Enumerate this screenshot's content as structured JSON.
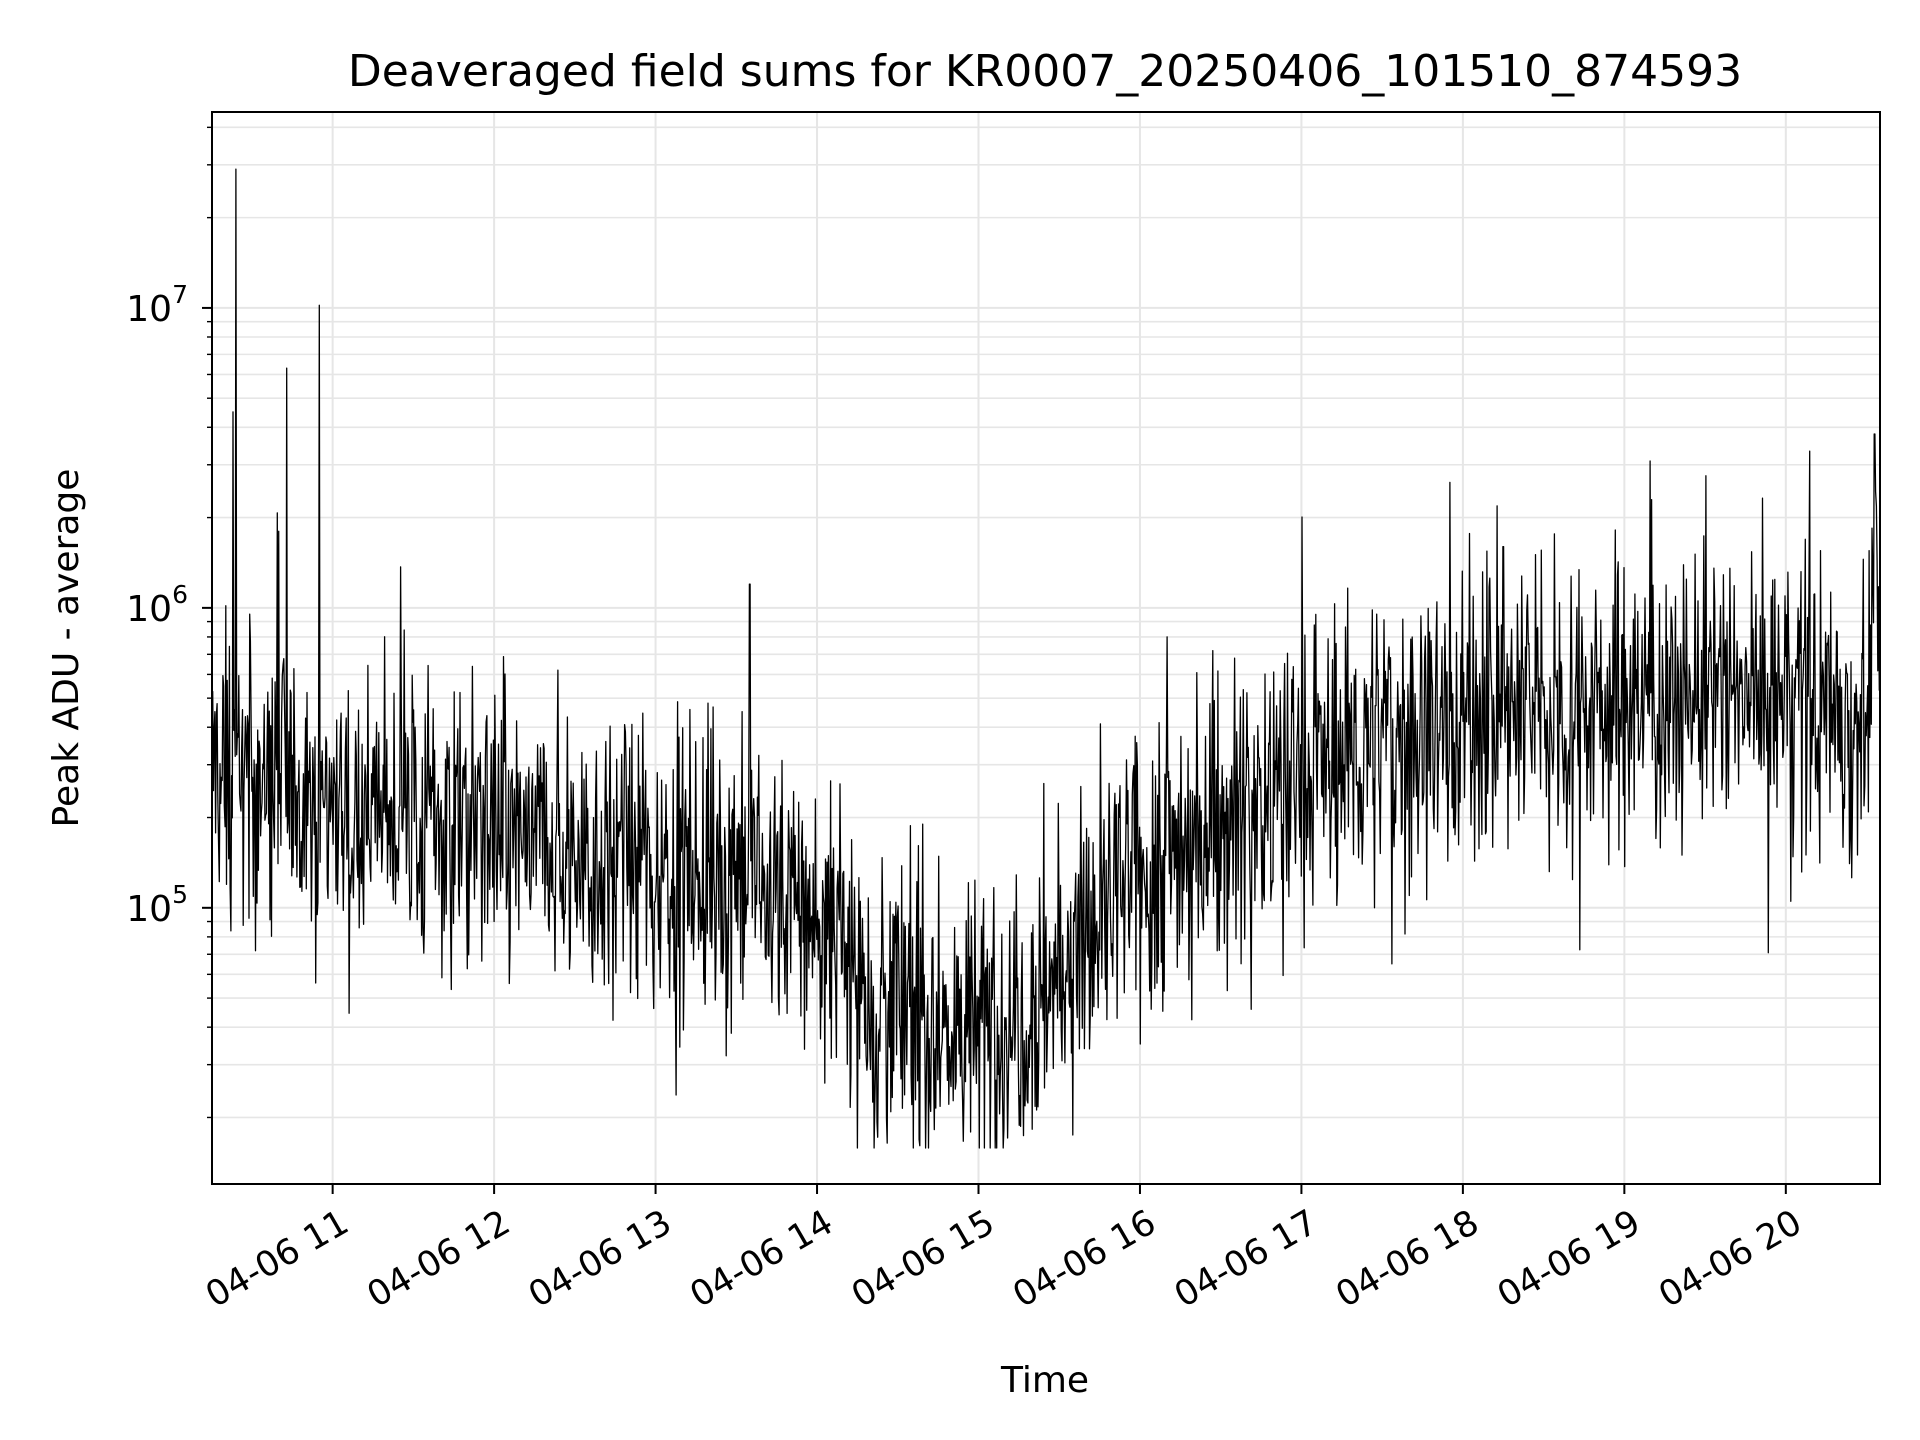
{
  "chart_data": {
    "type": "line",
    "title": "Deaveraged field sums for KR0007_20250406_101510_874593",
    "xlabel": "Time",
    "ylabel": "Peak ADU - average",
    "yscale": "log",
    "x_range": [
      "2025-04-06 10:15:10",
      "2025-04-06 20:35"
    ],
    "ylim": [
      12000,
      45000000
    ],
    "x_ticks": [
      "04-06 11",
      "04-06 12",
      "04-06 13",
      "04-06 14",
      "04-06 15",
      "04-06 16",
      "04-06 17",
      "04-06 18",
      "04-06 19",
      "04-06 20"
    ],
    "y_ticks": [
      {
        "base": "10",
        "exp": "5",
        "value": 100000
      },
      {
        "base": "10",
        "exp": "6",
        "value": 1000000
      },
      {
        "base": "10",
        "exp": "7",
        "value": 10000000
      }
    ],
    "grid": true,
    "line_color": "#000000",
    "series": [
      {
        "x": [
          "10:15",
          "10:30",
          "10:45",
          "11:00",
          "11:15",
          "11:30",
          "11:45",
          "12:00",
          "12:15",
          "12:30",
          "12:45",
          "13:00",
          "13:15",
          "13:30",
          "13:45",
          "14:00",
          "14:15",
          "14:30",
          "14:45",
          "15:00",
          "15:15",
          "15:30",
          "15:45",
          "16:00",
          "16:15",
          "16:30",
          "16:45",
          "17:00",
          "17:15",
          "17:30",
          "17:45",
          "18:00",
          "18:15",
          "18:30",
          "18:45",
          "19:00",
          "19:15",
          "19:30",
          "19:45",
          "20:00",
          "20:15",
          "20:30",
          "20:35"
        ],
        "values": [
          300000,
          260000,
          250000,
          230000,
          210000,
          200000,
          190000,
          180000,
          160000,
          150000,
          145000,
          140000,
          135000,
          130000,
          115000,
          90000,
          60000,
          45000,
          40000,
          38000,
          45000,
          60000,
          90000,
          130000,
          170000,
          200000,
          230000,
          270000,
          320000,
          360000,
          400000,
          430000,
          450000,
          470000,
          480000,
          490000,
          500000,
          500000,
          520000,
          520000,
          470000,
          420000,
          1200000
        ],
        "spikes": [
          {
            "x": "10:24",
            "value": 29000000
          },
          {
            "x": "10:23",
            "value": 4500000
          },
          {
            "x": "10:43",
            "value": 6300000
          },
          {
            "x": "10:40",
            "value": 1800000
          },
          {
            "x": "10:55",
            "value": 10200000
          },
          {
            "x": "13:35",
            "value": 1200000
          },
          {
            "x": "16:10",
            "value": 800000
          },
          {
            "x": "18:15",
            "value": 1600000
          },
          {
            "x": "20:33",
            "value": 3800000
          }
        ]
      }
    ]
  }
}
